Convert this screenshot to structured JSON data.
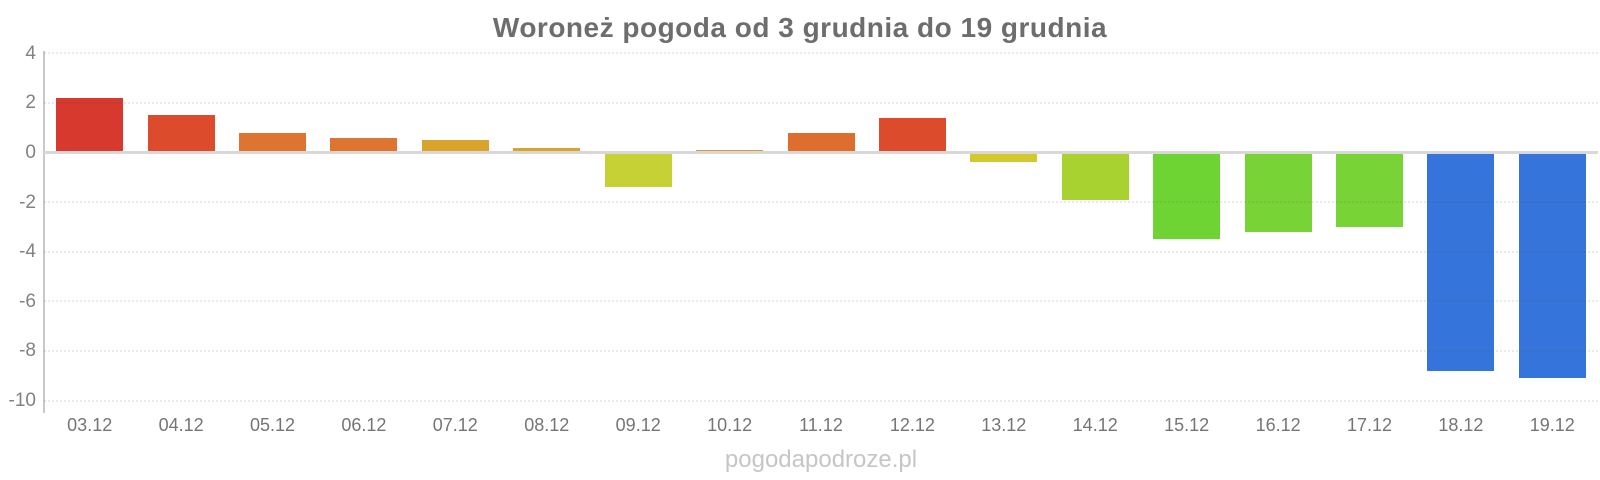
{
  "title": "Woroneż pogoda od 3 grudnia do 19 grudnia",
  "watermark": "pogodapodroze.pl",
  "chart_data": {
    "type": "bar",
    "title": "Woroneż pogoda od 3 grudnia do 19 grudnia",
    "xlabel": "",
    "ylabel": "",
    "categories": [
      "03.12",
      "04.12",
      "05.12",
      "06.12",
      "07.12",
      "08.12",
      "09.12",
      "10.12",
      "11.12",
      "12.12",
      "13.12",
      "14.12",
      "15.12",
      "16.12",
      "17.12",
      "18.12",
      "19.12"
    ],
    "values": [
      2.2,
      1.5,
      0.8,
      0.6,
      0.5,
      0.2,
      -1.4,
      0.1,
      0.8,
      1.4,
      -0.4,
      -1.9,
      -3.5,
      -3.2,
      -3.0,
      -8.8,
      -9.1
    ],
    "colors": [
      "#d7392f",
      "#dd4b2d",
      "#dd7430",
      "#dd7430",
      "#d9a42c",
      "#d9a42c",
      "#c5d134",
      "#e09a2e",
      "#dd6e2e",
      "#dd4b2d",
      "#d3c92f",
      "#a8d22f",
      "#6dd434",
      "#77d336",
      "#77d336",
      "#3574da",
      "#3574da"
    ],
    "ylim": [
      -10,
      4
    ],
    "yticks": [
      4,
      2,
      0,
      -2,
      -4,
      -6,
      -8,
      -10
    ],
    "ytick_step": 2,
    "grid": "horizontal-dotted",
    "legend": "none",
    "zero_line_color": "#d8d8d8",
    "axis_line_color": "#c9c9c9",
    "title_color": "#6d6d6d",
    "tick_label_color": "#828282",
    "watermark_color": "#c6c6c6"
  }
}
